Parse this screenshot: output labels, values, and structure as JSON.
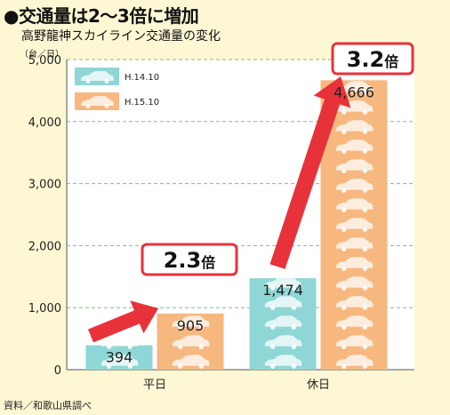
{
  "headline": "●交通量は2〜3倍に増加",
  "subtitle": "高野龍神スカイライン交通量の変化",
  "unit": "（台／日）",
  "source": "資料／和歌山県調べ",
  "colors": {
    "series1": "#8fd6d6",
    "series2": "#f7b880",
    "arrow": "#e8323a",
    "background": "#fdf7d3",
    "plot": "#ffffff",
    "gridline": "#7fbf7f"
  },
  "chart_data": {
    "type": "bar",
    "categories": [
      "平日",
      "休日"
    ],
    "series": [
      {
        "name": "H.14.10",
        "values": [
          394,
          1474
        ],
        "value_labels": [
          "394",
          "1,474"
        ]
      },
      {
        "name": "H.15.10",
        "values": [
          905,
          4666
        ],
        "value_labels": [
          "905",
          "4,666"
        ]
      }
    ],
    "ylim": [
      0,
      5000
    ],
    "yticks": [
      0,
      1000,
      2000,
      3000,
      4000,
      5000
    ],
    "ytick_labels": [
      "0",
      "1,000",
      "2,000",
      "3,000",
      "4,000",
      "5,000"
    ],
    "grid": true,
    "legend": "top-left",
    "annotations": [
      {
        "category": "平日",
        "ratio": "2.3",
        "suffix": "倍"
      },
      {
        "category": "休日",
        "ratio": "3.2",
        "suffix": "倍"
      }
    ]
  }
}
